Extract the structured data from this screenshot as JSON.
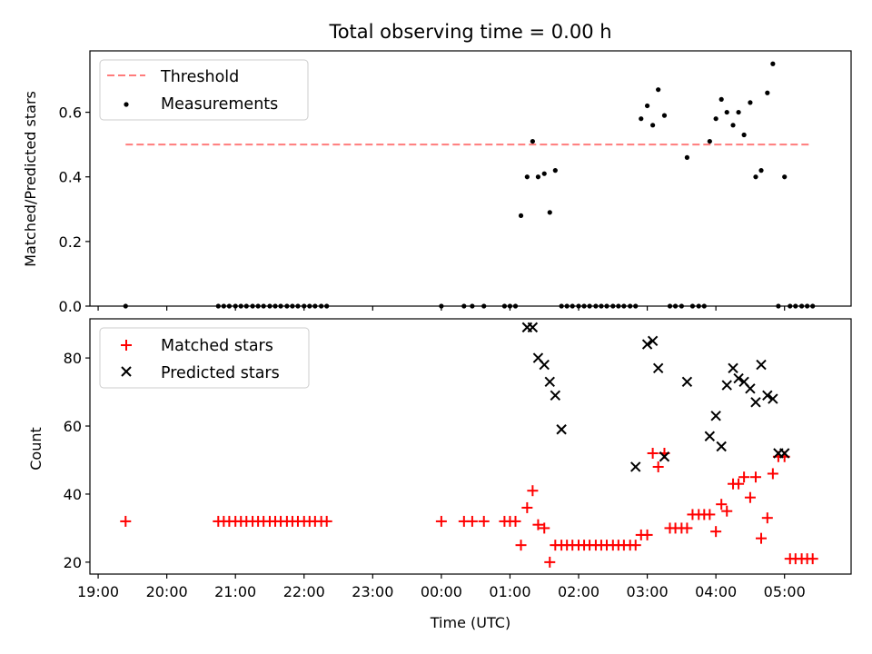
{
  "chart_data": {
    "title": "Total observing time = 0.00 h",
    "xlabel": "Time (UTC)",
    "x_ticks": [
      "19:00",
      "20:00",
      "21:00",
      "22:00",
      "23:00",
      "00:00",
      "01:00",
      "02:00",
      "03:00",
      "04:00",
      "05:00"
    ],
    "x_unit": "hours since 19:00 UTC",
    "xlim": [
      -0.12,
      10.97
    ],
    "panels": [
      {
        "type": "scatter",
        "ylabel": "Matched/Predicted stars",
        "ylim": [
          0,
          0.79
        ],
        "y_ticks": [
          "0.0",
          "0.2",
          "0.4",
          "0.6"
        ],
        "y_tick_values": [
          0,
          0.2,
          0.4,
          0.6
        ],
        "threshold": {
          "name": "Threshold",
          "value": 0.5,
          "x_range": [
            0.4,
            10.4
          ],
          "color": "#ff7b7b"
        },
        "series": [
          {
            "name": "Measurements",
            "color": "#000000",
            "marker": "dot",
            "x": [
              0.4,
              1.75,
              1.83,
              1.91,
              2.0,
              2.08,
              2.16,
              2.25,
              2.33,
              2.41,
              2.5,
              2.58,
              2.66,
              2.75,
              2.83,
              2.91,
              3.0,
              3.08,
              3.16,
              3.25,
              3.33,
              5.0,
              5.33,
              5.45,
              5.62,
              5.92,
              6.0,
              6.08,
              6.16,
              6.25,
              6.33,
              6.41,
              6.5,
              6.58,
              6.66,
              6.75,
              6.83,
              6.91,
              7.0,
              7.08,
              7.16,
              7.25,
              7.33,
              7.41,
              7.5,
              7.58,
              7.66,
              7.75,
              7.83,
              7.91,
              8.0,
              8.08,
              8.16,
              8.25,
              8.33,
              8.41,
              8.5,
              8.58,
              8.66,
              8.75,
              8.83,
              8.91,
              9.0,
              9.08,
              9.16,
              9.25,
              9.33,
              9.41,
              9.5,
              9.58,
              9.66,
              9.75,
              9.83,
              9.91,
              10.0,
              10.08,
              10.16,
              10.25,
              10.33,
              10.41
            ],
            "y": [
              0,
              0,
              0,
              0,
              0,
              0,
              0,
              0,
              0,
              0,
              0,
              0,
              0,
              0,
              0,
              0,
              0,
              0,
              0,
              0,
              0,
              0,
              0,
              0,
              0,
              0,
              0,
              0,
              0.28,
              0.4,
              0.51,
              0.4,
              0.41,
              0.29,
              0.42,
              0,
              0,
              0,
              0,
              0,
              0,
              0,
              0,
              0,
              0,
              0,
              0,
              0,
              0,
              0.58,
              0.62,
              0.56,
              0.67,
              0.59,
              0,
              0,
              0,
              0.46,
              0,
              0,
              0,
              0.51,
              0.58,
              0.64,
              0.6,
              0.56,
              0.6,
              0.53,
              0.63,
              0.4,
              0.42,
              0.66,
              0.75,
              0,
              0.4,
              0,
              0,
              0,
              0,
              0
            ]
          }
        ]
      },
      {
        "type": "scatter",
        "ylabel": "Count",
        "ylim": [
          16.5,
          91.5
        ],
        "y_ticks": [
          "20",
          "40",
          "60",
          "80"
        ],
        "y_tick_values": [
          20,
          40,
          60,
          80
        ],
        "series": [
          {
            "name": "Matched stars",
            "color": "#ff0000",
            "marker": "plus",
            "x": [
              0.4,
              1.75,
              1.83,
              1.91,
              2.0,
              2.08,
              2.16,
              2.25,
              2.33,
              2.41,
              2.5,
              2.58,
              2.66,
              2.75,
              2.83,
              2.91,
              3.0,
              3.08,
              3.16,
              3.25,
              3.33,
              5.0,
              5.33,
              5.45,
              5.62,
              5.92,
              6.0,
              6.08,
              6.16,
              6.25,
              6.33,
              6.41,
              6.5,
              6.58,
              6.66,
              6.75,
              6.83,
              6.91,
              7.0,
              7.08,
              7.16,
              7.25,
              7.33,
              7.41,
              7.5,
              7.58,
              7.66,
              7.75,
              7.83,
              7.91,
              8.0,
              8.08,
              8.16,
              8.25,
              8.33,
              8.41,
              8.5,
              8.58,
              8.66,
              8.75,
              8.83,
              8.91,
              9.0,
              9.08,
              9.16,
              9.25,
              9.33,
              9.41,
              9.5,
              9.58,
              9.66,
              9.75,
              9.83,
              9.91,
              10.0,
              10.08,
              10.16,
              10.25,
              10.33,
              10.41
            ],
            "y": [
              32,
              32,
              32,
              32,
              32,
              32,
              32,
              32,
              32,
              32,
              32,
              32,
              32,
              32,
              32,
              32,
              32,
              32,
              32,
              32,
              32,
              32,
              32,
              32,
              32,
              32,
              32,
              32,
              25,
              36,
              41,
              31,
              30,
              20,
              25,
              25,
              25,
              25,
              25,
              25,
              25,
              25,
              25,
              25,
              25,
              25,
              25,
              25,
              25,
              28,
              28,
              52,
              48,
              52,
              30,
              30,
              30,
              30,
              34,
              34,
              34,
              34,
              29,
              37,
              35,
              43,
              43,
              45,
              39,
              45,
              27,
              33,
              46,
              51,
              51,
              21,
              21,
              21,
              21,
              21
            ]
          },
          {
            "name": "Predicted stars",
            "color": "#000000",
            "marker": "x",
            "x": [
              6.25,
              6.33,
              6.41,
              6.5,
              6.58,
              6.66,
              6.75,
              7.83,
              8.0,
              8.08,
              8.16,
              8.25,
              8.58,
              8.91,
              9.0,
              9.08,
              9.16,
              9.25,
              9.33,
              9.41,
              9.5,
              9.58,
              9.66,
              9.75,
              9.83,
              9.91,
              10.0
            ],
            "y": [
              89,
              89,
              80,
              78,
              73,
              69,
              59,
              48,
              84,
              85,
              77,
              51,
              73,
              57,
              63,
              54,
              72,
              77,
              74,
              73,
              71,
              67,
              78,
              69,
              68,
              52,
              52
            ]
          }
        ]
      }
    ]
  }
}
